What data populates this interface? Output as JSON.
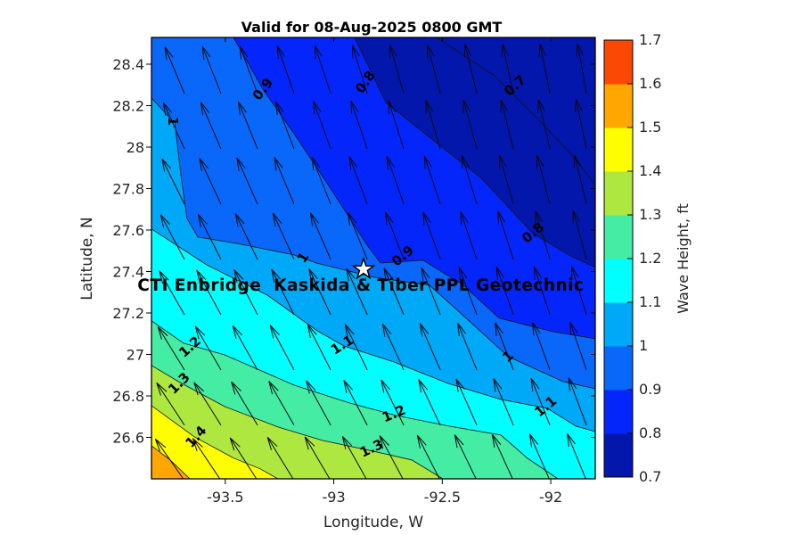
{
  "chart_data": {
    "type": "filled-contour-quiver",
    "title": "Valid for 08-Aug-2025 0800 GMT",
    "xlabel": "Longitude, W",
    "ylabel": "Latitude, N",
    "colorbar_label": "Wave Height, ft",
    "xlim": [
      -93.84,
      -91.795
    ],
    "ylim": [
      26.4,
      28.529
    ],
    "x_ticks": [
      -93.5,
      -93,
      -92.5,
      -92
    ],
    "x_tick_labels": [
      "-93.5",
      "-93",
      "-92.5",
      "-92"
    ],
    "y_ticks": [
      26.6,
      26.8,
      27,
      27.2,
      27.4,
      27.6,
      27.8,
      28,
      28.2,
      28.4
    ],
    "y_tick_labels": [
      "26.6",
      "26.8",
      "27",
      "27.2",
      "27.4",
      "27.6",
      "27.8",
      "28",
      "28.2",
      "28.4"
    ],
    "levels": [
      0.7,
      0.8,
      0.9,
      1,
      1.1,
      1.2,
      1.3,
      1.4,
      1.5,
      1.6,
      1.7
    ],
    "colors": [
      "#0417AD",
      "#0426FB",
      "#0968FA",
      "#00A9F7",
      "#00FFFF",
      "#44EDA3",
      "#AEE73F",
      "#FEFE00",
      "#FFA700",
      "#FB4903"
    ],
    "colorbar_tick_labels": [
      "0.7",
      "0.8",
      "0.9",
      "1",
      "1.1",
      "1.2",
      "1.3",
      "1.4",
      "1.5",
      "1.6",
      "1.7"
    ],
    "site": {
      "label": "CTI Enbridge  Kaskida & Tiber PPL Geotechnic",
      "lon": -92.863,
      "lat": 27.411
    },
    "contours": [
      {
        "level": 0.7,
        "fill": null,
        "close": [],
        "path": [
          [
            -92.526,
            28.529
          ],
          [
            -92.259,
            28.344
          ],
          [
            -92.074,
            28.151
          ],
          [
            -91.91,
            27.97
          ],
          [
            -91.795,
            27.819
          ]
        ]
      },
      {
        "level": 0.8,
        "fill": "#0426FB",
        "close": [
          "BR",
          "BL",
          "TL"
        ],
        "path": [
          [
            -92.904,
            28.529
          ],
          [
            -92.76,
            28.215
          ],
          [
            -92.32,
            27.85
          ],
          [
            -92.082,
            27.583
          ],
          [
            -91.91,
            27.476
          ],
          [
            -91.795,
            27.42
          ]
        ]
      },
      {
        "level": 0.9,
        "fill": "#0968FA",
        "close": [
          "BR",
          "BL",
          "TL"
        ],
        "path": [
          [
            -93.462,
            28.529
          ],
          [
            -93.327,
            28.28
          ],
          [
            -93.183,
            28.065
          ],
          [
            -93.019,
            27.807
          ],
          [
            -92.846,
            27.527
          ],
          [
            -92.785,
            27.441
          ],
          [
            -92.588,
            27.454
          ],
          [
            -92.403,
            27.334
          ],
          [
            -92.238,
            27.175
          ],
          [
            -91.992,
            27.11
          ],
          [
            -91.795,
            27.076
          ]
        ]
      },
      {
        "level": 1.0,
        "fill": "#00A9F7",
        "close": [
          "BR",
          "BL"
        ],
        "path": [
          [
            -93.84,
            28.237
          ],
          [
            -93.733,
            28.116
          ],
          [
            -93.7,
            27.828
          ],
          [
            -93.676,
            27.656
          ],
          [
            -93.626,
            27.566
          ],
          [
            -93.45,
            27.536
          ],
          [
            -93.183,
            27.48
          ],
          [
            -93.08,
            27.441
          ],
          [
            -92.813,
            27.372
          ],
          [
            -92.559,
            27.334
          ],
          [
            -92.394,
            27.179
          ],
          [
            -92.197,
            26.99
          ],
          [
            -91.943,
            26.869
          ],
          [
            -91.795,
            26.835
          ]
        ]
      },
      {
        "level": 1.1,
        "fill": "#00FFFF",
        "close": [
          "BR",
          "BL"
        ],
        "path": [
          [
            -93.84,
            27.605
          ],
          [
            -93.585,
            27.432
          ],
          [
            -93.306,
            27.286
          ],
          [
            -93.076,
            27.114
          ],
          [
            -92.953,
            27.041
          ],
          [
            -92.723,
            26.964
          ],
          [
            -92.476,
            26.861
          ],
          [
            -92.23,
            26.783
          ],
          [
            -92.016,
            26.74
          ],
          [
            -91.885,
            26.654
          ],
          [
            -91.795,
            26.628
          ]
        ]
      },
      {
        "level": 1.2,
        "fill": "#44EDA3",
        "close": [
          "BL"
        ],
        "path": [
          [
            -93.84,
            27.162
          ],
          [
            -93.692,
            27.054
          ],
          [
            -93.503,
            26.998
          ],
          [
            -93.183,
            26.852
          ],
          [
            -92.928,
            26.766
          ],
          [
            -92.715,
            26.706
          ],
          [
            -92.468,
            26.654
          ],
          [
            -92.23,
            26.611
          ],
          [
            -92.107,
            26.499
          ],
          [
            -91.967,
            26.4
          ]
        ]
      },
      {
        "level": 1.3,
        "fill": "#AEE73F",
        "close": [
          "BL"
        ],
        "path": [
          [
            -93.84,
            26.947
          ],
          [
            -93.709,
            26.865
          ],
          [
            -93.503,
            26.749
          ],
          [
            -93.257,
            26.65
          ],
          [
            -93.051,
            26.585
          ],
          [
            -92.822,
            26.534
          ],
          [
            -92.641,
            26.491
          ],
          [
            -92.497,
            26.4
          ]
        ]
      },
      {
        "level": 1.4,
        "fill": "#FEFE00",
        "close": [
          "BL"
        ],
        "path": [
          [
            -93.84,
            26.753
          ],
          [
            -93.643,
            26.603
          ],
          [
            -93.462,
            26.5
          ],
          [
            -93.339,
            26.448
          ],
          [
            -93.257,
            26.4
          ]
        ]
      },
      {
        "level": 1.5,
        "fill": "#FFA700",
        "close": [
          "BL"
        ],
        "path": [
          [
            -93.84,
            26.56
          ],
          [
            -93.754,
            26.491
          ],
          [
            -93.663,
            26.4
          ]
        ]
      }
    ],
    "contour_labels": [
      {
        "text": "0.9",
        "lon": -93.327,
        "lat": 28.28,
        "rot": -52
      },
      {
        "text": "0.8",
        "lon": -92.855,
        "lat": 28.314,
        "rot": -55
      },
      {
        "text": "0.7",
        "lon": -92.165,
        "lat": 28.297,
        "rot": -42
      },
      {
        "text": "1",
        "lon": -93.741,
        "lat": 28.125,
        "rot": 90
      },
      {
        "text": "1",
        "lon": -93.142,
        "lat": 27.467,
        "rot": -55
      },
      {
        "text": "0.9",
        "lon": -92.682,
        "lat": 27.475,
        "rot": -40
      },
      {
        "text": "0.8",
        "lon": -92.082,
        "lat": 27.587,
        "rot": -40
      },
      {
        "text": "1.2",
        "lon": -93.663,
        "lat": 27.037,
        "rot": -42
      },
      {
        "text": "1.3",
        "lon": -93.713,
        "lat": 26.861,
        "rot": -45
      },
      {
        "text": "1.4",
        "lon": -93.635,
        "lat": 26.603,
        "rot": -48
      },
      {
        "text": "1.1",
        "lon": -92.961,
        "lat": 27.046,
        "rot": -32
      },
      {
        "text": "1.2",
        "lon": -92.723,
        "lat": 26.714,
        "rot": -22
      },
      {
        "text": "1.3",
        "lon": -92.826,
        "lat": 26.547,
        "rot": -25
      },
      {
        "text": "1",
        "lon": -92.197,
        "lat": 26.99,
        "rot": -42
      },
      {
        "text": "1.1",
        "lon": -92.024,
        "lat": 26.749,
        "rot": -40
      }
    ],
    "quiver": {
      "cols": 12,
      "rows": 8,
      "lon_start": -93.688,
      "lon_step": 0.1684,
      "lat_start": 28.258,
      "lat_step": -0.2666,
      "length_deg": 0.234,
      "angle_top_right_deg": 98,
      "angle_bottom_left_deg": 126
    }
  }
}
